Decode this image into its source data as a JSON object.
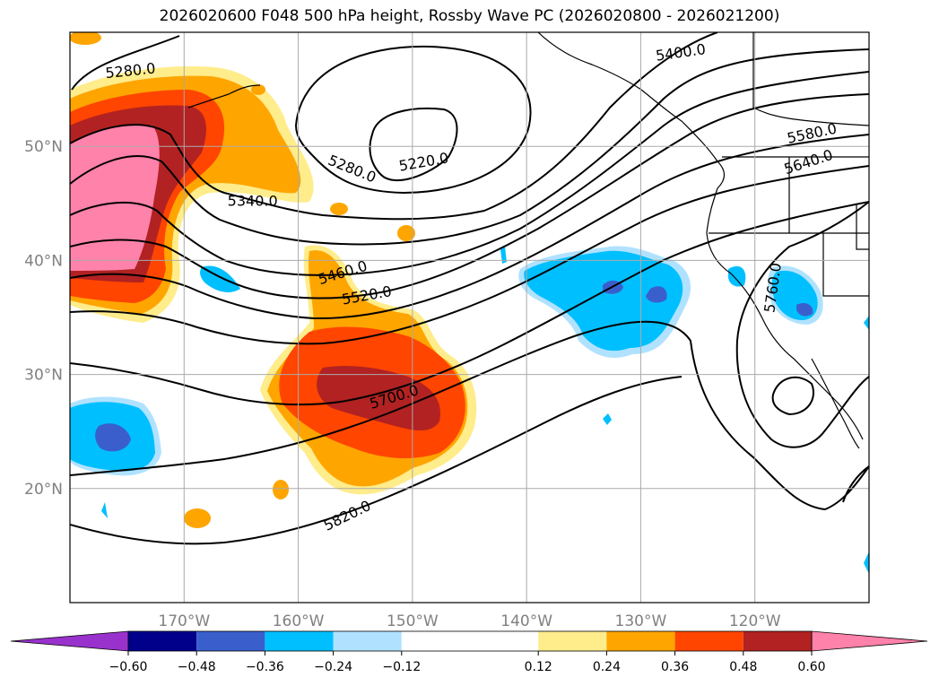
{
  "title": "2026020600 F048 500 hPa height, Rossby Wave PC (2026020800 - 2026021200)",
  "map": {
    "projection": "equirectangular",
    "lon_range": [
      -180,
      -110
    ],
    "lat_range": [
      10,
      60
    ],
    "grid": true,
    "lat_ticks": [
      {
        "value": 20,
        "label": "20°N"
      },
      {
        "value": 30,
        "label": "30°N"
      },
      {
        "value": 40,
        "label": "40°N"
      },
      {
        "value": 50,
        "label": "50°N"
      }
    ],
    "lon_ticks": [
      {
        "value": -170,
        "label": "170°W"
      },
      {
        "value": -160,
        "label": "160°W"
      },
      {
        "value": -150,
        "label": "150°W"
      },
      {
        "value": -140,
        "label": "140°W"
      },
      {
        "value": -130,
        "label": "130°W"
      },
      {
        "value": -120,
        "label": "120°W"
      }
    ],
    "contour_labels": [
      {
        "text": "5280.0",
        "lon": -174.7,
        "lat": 56.6,
        "rot": -6
      },
      {
        "text": "5400.0",
        "lon": -126.5,
        "lat": 58.2,
        "rot": -8
      },
      {
        "text": "5220.0",
        "lon": -149.0,
        "lat": 48.6,
        "rot": -10
      },
      {
        "text": "5280.0",
        "lon": -155.3,
        "lat": 48.0,
        "rot": 22
      },
      {
        "text": "5580.0",
        "lon": -115.0,
        "lat": 51.1,
        "rot": -12
      },
      {
        "text": "5640.0",
        "lon": -115.3,
        "lat": 48.6,
        "rot": -18
      },
      {
        "text": "5340.0",
        "lon": -164.0,
        "lat": 45.2,
        "rot": 0
      },
      {
        "text": "5460.0",
        "lon": -156.1,
        "lat": 38.9,
        "rot": -17
      },
      {
        "text": "5520.0",
        "lon": -154.0,
        "lat": 36.9,
        "rot": -10
      },
      {
        "text": "5700.0",
        "lon": -151.6,
        "lat": 28.0,
        "rot": -17
      },
      {
        "text": "5760.0",
        "lon": -118.4,
        "lat": 37.6,
        "rot": -82
      },
      {
        "text": "5820.0",
        "lon": -155.7,
        "lat": 17.6,
        "rot": -26
      }
    ]
  },
  "colorbar": {
    "levels": [
      -0.72,
      -0.6,
      -0.48,
      -0.36,
      -0.24,
      -0.12,
      0.12,
      0.24,
      0.36,
      0.48,
      0.6,
      0.72
    ],
    "colors": [
      "#9932CC",
      "#00008B",
      "#3A5FCD",
      "#00BFFF",
      "#B0E2FF",
      "#FFFFFF",
      "#FFEC8B",
      "#FFA500",
      "#FF4500",
      "#B22222",
      "#FF82AB"
    ],
    "extend": "both",
    "tick_labels": [
      "−0.60",
      "−0.48",
      "−0.36",
      "−0.24",
      "−0.12",
      "0.12",
      "0.24",
      "0.36",
      "0.48",
      "0.60"
    ]
  }
}
